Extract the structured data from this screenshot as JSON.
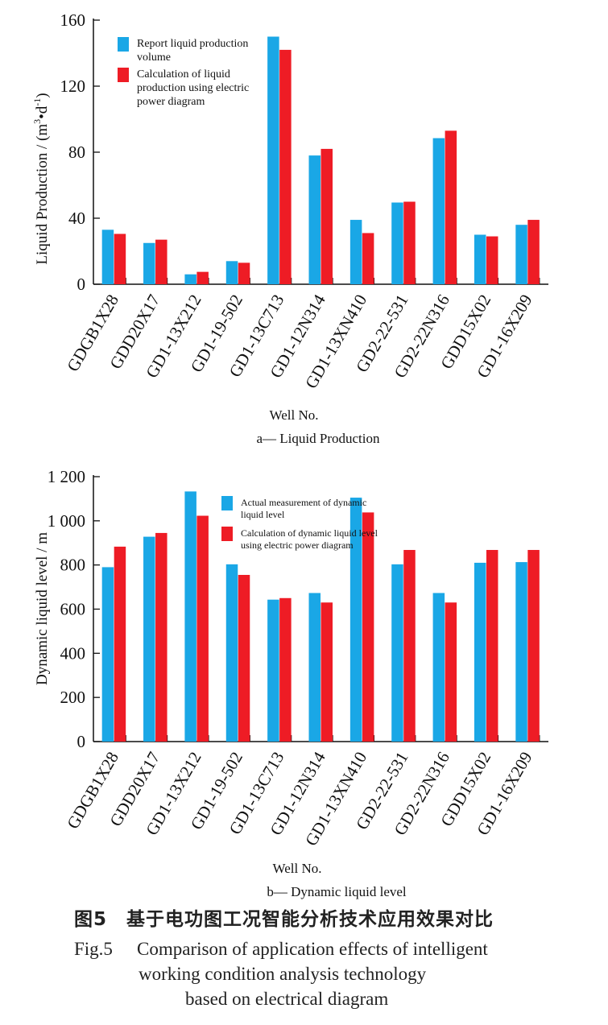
{
  "chart_data": [
    {
      "type": "bar",
      "categories": [
        "GDGB1X28",
        "GDD20X17",
        "GD1-13X212",
        "GD1-19-502",
        "GD1-13C713",
        "GD1-12N314",
        "GD1-13XN410",
        "GD2-22-531",
        "GD2-22N316",
        "GDD15X02",
        "GD1-16X209"
      ],
      "series": [
        {
          "name": "Report liquid production volume",
          "color": "#1aa7e6",
          "values": [
            33,
            25,
            6,
            14,
            150,
            78,
            39,
            49.5,
            88.5,
            30,
            36
          ]
        },
        {
          "name": "Calculation of liquid production using electric power diagram",
          "color": "#ee1c25",
          "values": [
            30.5,
            27,
            7.5,
            13,
            142,
            82,
            31,
            50,
            93,
            29,
            39
          ]
        }
      ],
      "ylim": [
        0,
        160
      ],
      "yticks": [
        0,
        40,
        80,
        120,
        160
      ],
      "ytick_labels": [
        "0",
        "40",
        "80",
        "120",
        "160"
      ],
      "ylabel": "Liquid Production / (m",
      "ylabel_sup1": "3",
      "ylabel_mid": "•d",
      "ylabel_sup2": "-1",
      "ylabel_end": ")",
      "xlabel": "Well No.",
      "subcaption": "a— Liquid Production",
      "legend_position": "top-left"
    },
    {
      "type": "bar",
      "categories": [
        "GDGB1X28",
        "GDD20X17",
        "GD1-13X212",
        "GD1-19-502",
        "GD1-13C713",
        "GD1-12N314",
        "GD1-13XN410",
        "GD2-22-531",
        "GD2-22N316",
        "GDD15X02",
        "GD1-16X209"
      ],
      "series": [
        {
          "name": "Actual measurement of dynamic liquid level",
          "color": "#1aa7e6",
          "values": [
            790,
            928,
            1133,
            803,
            643,
            673,
            1105,
            803,
            673,
            810,
            813
          ]
        },
        {
          "name": "Calculation of dynamic liquid level using electric power diagram",
          "color": "#ee1c25",
          "values": [
            883,
            945,
            1023,
            755,
            650,
            630,
            1038,
            868,
            630,
            868,
            868
          ]
        }
      ],
      "ylim": [
        0,
        1200
      ],
      "yticks": [
        0,
        200,
        400,
        600,
        800,
        1000,
        1200
      ],
      "ytick_labels": [
        "0",
        "200",
        "400",
        "600",
        "800",
        "1 000",
        "1 200"
      ],
      "ylabel": "Dynamic liquid level / m",
      "xlabel": "Well No.",
      "subcaption": "b— Dynamic liquid level",
      "legend_position": "top-center"
    }
  ],
  "caption": {
    "cn": "图5　基于电功图工况智能分析技术应用效果对比",
    "en_label": "Fig.5",
    "en_line1": "Comparison of application effects of intelligent",
    "en_line2": "working condition analysis technology",
    "en_line3": "based on electrical diagram"
  }
}
